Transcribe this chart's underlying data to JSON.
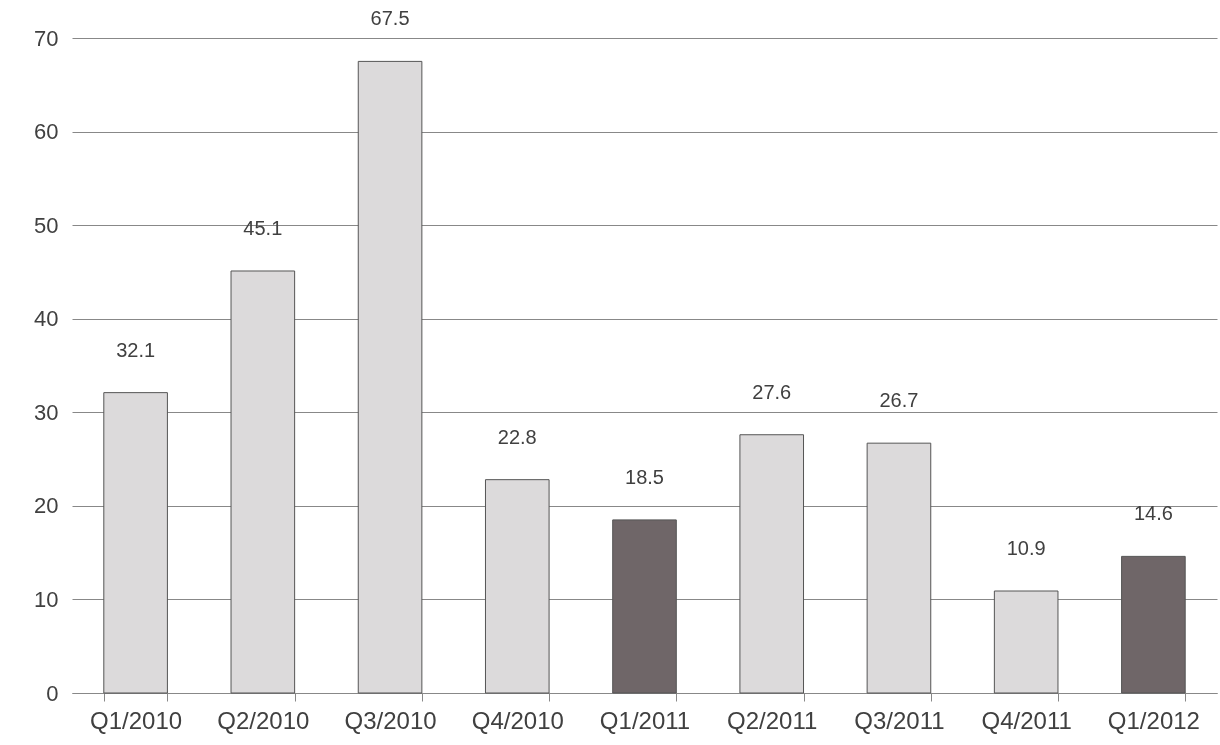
{
  "chart_data": {
    "type": "bar",
    "categories": [
      "Q1/2010",
      "Q2/2010",
      "Q3/2010",
      "Q4/2010",
      "Q1/2011",
      "Q2/2011",
      "Q3/2011",
      "Q4/2011",
      "Q1/2012"
    ],
    "values": [
      32.1,
      45.1,
      67.5,
      22.8,
      18.5,
      27.6,
      26.7,
      10.9,
      14.6
    ],
    "colors": [
      "#dcdadb",
      "#dcdadb",
      "#dcdadb",
      "#dcdadb",
      "#6f6668",
      "#dcdadb",
      "#dcdadb",
      "#dcdadb",
      "#6f6668"
    ],
    "ylim": [
      0,
      70
    ],
    "yticks": [
      0,
      10,
      20,
      30,
      40,
      50,
      60,
      70
    ],
    "grid": "y",
    "data_labels": true,
    "legend": false
  }
}
